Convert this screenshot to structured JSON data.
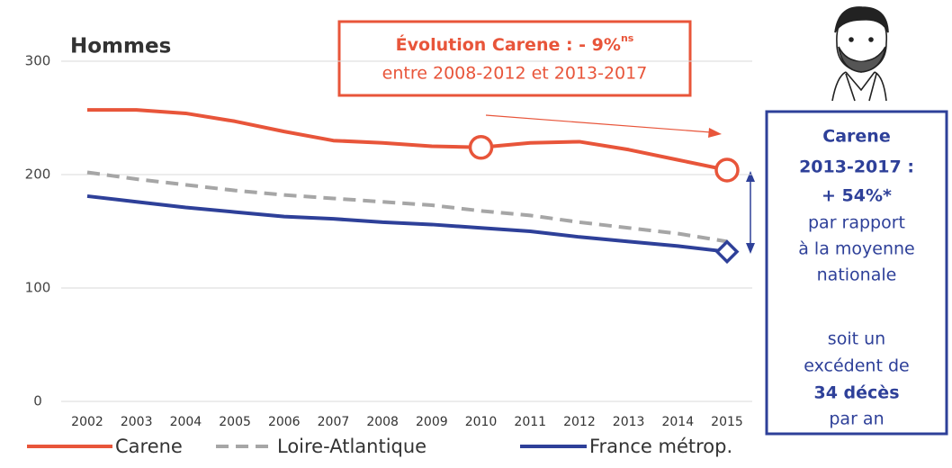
{
  "chart_data": {
    "type": "line",
    "title": "Hommes",
    "categories": [
      "2002",
      "2003",
      "2004",
      "2005",
      "2006",
      "2007",
      "2008",
      "2009",
      "2010",
      "2011",
      "2012",
      "2013",
      "2014",
      "2015"
    ],
    "series": [
      {
        "name": "Carene",
        "color": "#e8553a",
        "values": [
          257,
          257,
          254,
          247,
          238,
          230,
          228,
          225,
          224,
          228,
          229,
          222,
          213,
          204
        ]
      },
      {
        "name": "Loire-Atlantique",
        "color": "#a6a6a6",
        "values": [
          202,
          196,
          191,
          186,
          182,
          179,
          176,
          173,
          168,
          164,
          158,
          153,
          148,
          141
        ]
      },
      {
        "name": "France métrop.",
        "color": "#2e4099",
        "values": [
          181,
          176,
          171,
          167,
          163,
          161,
          158,
          156,
          153,
          150,
          145,
          141,
          137,
          132
        ]
      }
    ],
    "ylim": [
      0,
      300
    ],
    "yticks": [
      0,
      100,
      200,
      300
    ],
    "grid": true,
    "annotation": {
      "title": "Évolution Carene : - 9%",
      "sup": "ns",
      "text": "entre 2008-2012 et 2013-2017"
    },
    "side_box": [
      "Carene",
      "2013-2017 :",
      "+ 54%*",
      "par rapport",
      "à la moyenne",
      "nationale",
      "soit un",
      "excédent de",
      "34 décès",
      "par an"
    ]
  }
}
